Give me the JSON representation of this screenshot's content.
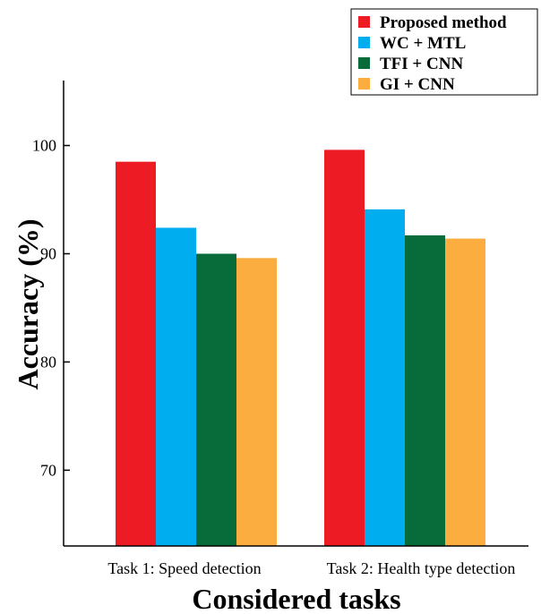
{
  "chart_data": {
    "type": "bar",
    "title": "",
    "xlabel": "Considered tasks",
    "ylabel": "Accuracy (%)",
    "ylim": [
      63,
      106
    ],
    "yticks": [
      70,
      80,
      90,
      100
    ],
    "categories": [
      "Task 1: Speed detection",
      "Task 2: Health type detection"
    ],
    "series": [
      {
        "name": "Proposed method",
        "color": "#ed1c24",
        "values": [
          98.5,
          99.6
        ]
      },
      {
        "name": "WC + MTL",
        "color": "#00aeef",
        "values": [
          92.4,
          94.1
        ]
      },
      {
        "name": "TFI + CNN",
        "color": "#076b3a",
        "values": [
          90.0,
          91.7
        ]
      },
      {
        "name": "GI + CNN",
        "color": "#fbad3f",
        "values": [
          89.6,
          91.4
        ]
      }
    ],
    "legend_position": "top-right",
    "grid": false
  }
}
